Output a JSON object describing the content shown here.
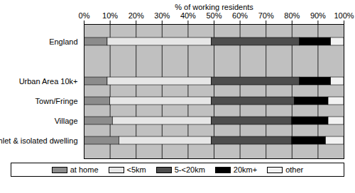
{
  "chart_data": {
    "type": "bar",
    "orientation": "horizontal",
    "stacked": true,
    "grid": true,
    "legend": "bottom",
    "x_label": "% of working residents",
    "categories": [
      "England",
      null,
      "Urban Area 10k+",
      "Town/Fringe",
      "Village",
      "Hamlet & isolated dwelling"
    ],
    "series": [
      {
        "name": "at home",
        "color": "#8c8c8c",
        "values": [
          9,
          null,
          9,
          10,
          11,
          13.5
        ]
      },
      {
        "name": "<5km",
        "color": "#e6e6e6",
        "values": [
          40,
          null,
          40,
          39,
          38,
          35.5
        ]
      },
      {
        "name": "5-<20km",
        "color": "#4d4d4d",
        "values": [
          34,
          null,
          34,
          32,
          31,
          31
        ]
      },
      {
        "name": "20km+",
        "color": "#000000",
        "values": [
          12,
          null,
          12,
          13,
          14,
          13
        ]
      },
      {
        "name": "other",
        "color": "#f2f2f2",
        "values": [
          5,
          null,
          5,
          6,
          6,
          7
        ]
      }
    ],
    "xlim": [
      0,
      100
    ],
    "xticks": [
      {
        "value": 0,
        "label": "0%"
      },
      {
        "value": 10,
        "label": "10%"
      },
      {
        "value": 20,
        "label": "20%"
      },
      {
        "value": 30,
        "label": "30%"
      },
      {
        "value": 40,
        "label": "40%"
      },
      {
        "value": 50,
        "label": "50%"
      },
      {
        "value": 60,
        "label": "60%"
      },
      {
        "value": 70,
        "label": "70%"
      },
      {
        "value": 80,
        "label": "80%"
      },
      {
        "value": 90,
        "label": "90%"
      },
      {
        "value": 100,
        "label": "100%"
      }
    ]
  }
}
